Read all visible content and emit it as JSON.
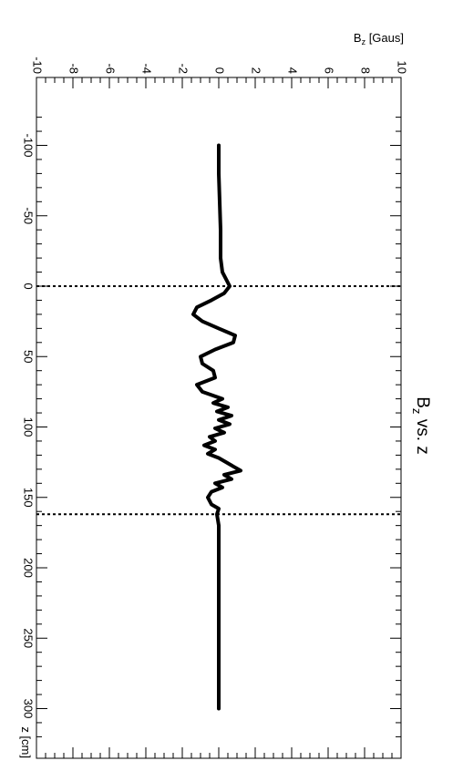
{
  "chart_data": {
    "type": "line",
    "title": "B_z vs. z",
    "title_parts": {
      "main": "B",
      "sub": "z",
      "rest": " vs. z"
    },
    "xlabel": "z [cm]",
    "ylabel": "B_z [Gaus]",
    "ylabel_parts": {
      "main": "B",
      "sub": "z",
      "rest": " [Gaus]"
    },
    "orientation": "rotated 90° clockwise (z increases downward, B_z increases to the right)",
    "xlim": [
      -125,
      320
    ],
    "ylim": [
      -10,
      10
    ],
    "x_ticks": [
      -100,
      -50,
      0,
      50,
      100,
      150,
      200,
      250,
      300
    ],
    "y_ticks": [
      -10,
      -8,
      -6,
      -4,
      -2,
      0,
      2,
      4,
      6,
      8,
      10
    ],
    "vertical_lines": [
      {
        "x": 0,
        "style": "dotted"
      },
      {
        "x": 162,
        "style": "dotted"
      }
    ],
    "grid": false,
    "legend": "none",
    "series": [
      {
        "color": "#000000",
        "x": [
          -100,
          -80,
          -60,
          -40,
          -20,
          -10,
          0,
          5,
          10,
          15,
          20,
          25,
          30,
          35,
          40,
          45,
          50,
          55,
          60,
          65,
          70,
          75,
          80,
          83,
          86,
          89,
          92,
          95,
          98,
          101,
          104,
          107,
          110,
          113,
          116,
          119,
          122,
          125,
          128,
          131,
          134,
          137,
          140,
          143,
          146,
          150,
          155,
          158,
          162,
          170,
          180,
          200,
          250,
          300
        ],
        "y": [
          0.0,
          0.0,
          0.05,
          0.1,
          0.1,
          0.2,
          0.6,
          0.3,
          -0.4,
          -1.2,
          -1.4,
          -0.9,
          0.0,
          0.9,
          0.8,
          -0.2,
          -1.0,
          -0.9,
          -0.3,
          -0.2,
          -1.2,
          -0.9,
          0.2,
          -0.3,
          0.5,
          -0.1,
          0.7,
          0.0,
          0.6,
          -0.2,
          0.3,
          -0.5,
          -0.2,
          -0.8,
          -0.2,
          -0.6,
          0.0,
          0.4,
          0.8,
          1.2,
          0.3,
          0.7,
          -0.2,
          0.2,
          -0.4,
          -0.6,
          -0.4,
          0.0,
          -0.1,
          0.0,
          0.0,
          0.0,
          0.0,
          0.0
        ]
      }
    ]
  }
}
